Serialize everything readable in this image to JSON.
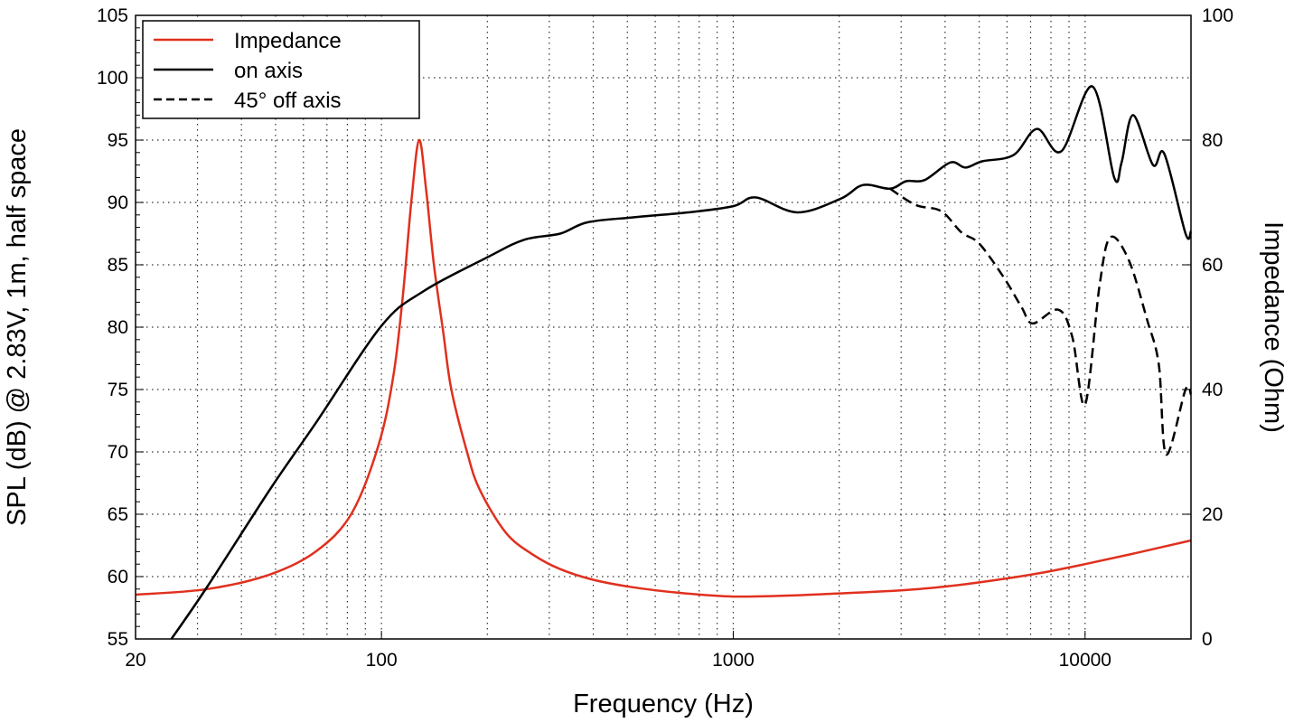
{
  "chart_data": {
    "type": "line",
    "xlabel": "Frequency (Hz)",
    "ylabel": "SPL (dB) @ 2.83V, 1m, half space",
    "y2label": "Impedance (Ohm)",
    "xscale": "log",
    "xlim": [
      20,
      20000
    ],
    "ylim": [
      55,
      105
    ],
    "y2lim": [
      0,
      100
    ],
    "xticks": [
      20,
      100,
      1000,
      10000
    ],
    "xtick_labels": [
      "20",
      "100",
      "1000",
      "10000"
    ],
    "yticks": [
      55,
      60,
      65,
      70,
      75,
      80,
      85,
      90,
      95,
      100,
      105
    ],
    "ytick_labels": [
      "55",
      "60",
      "65",
      "70",
      "75",
      "80",
      "85",
      "90",
      "95",
      "100",
      "105"
    ],
    "y2ticks": [
      0,
      20,
      40,
      60,
      80,
      100
    ],
    "y2tick_labels": [
      "0",
      "20",
      "40",
      "60",
      "80",
      "100"
    ],
    "grid": true,
    "legend_position": "top-left",
    "colors": {
      "impedance": "#e0301e",
      "on_axis": "#000000",
      "off_axis": "#000000"
    },
    "series": [
      {
        "name": "Impedance",
        "axis": "right",
        "style": "solid",
        "color": "#e0301e",
        "x": [
          20,
          32,
          48,
          65,
          82,
          98,
          108,
          115,
          122,
          128,
          134,
          141,
          150,
          158,
          175,
          190,
          226,
          270,
          322,
          400,
          516,
          700,
          1000,
          1500,
          2000,
          3000,
          4000,
          5500,
          7500,
          10000,
          14000,
          20000
        ],
        "y": [
          7.1,
          8,
          10.3,
          14,
          20,
          31,
          42,
          55,
          71,
          80,
          72,
          60,
          49,
          40,
          30,
          24,
          17,
          13.5,
          11.2,
          9.5,
          8.3,
          7.4,
          6.8,
          7,
          7.3,
          7.8,
          8.4,
          9.4,
          10.6,
          12,
          13.8,
          15.8
        ]
      },
      {
        "name": "on axis",
        "axis": "left",
        "style": "solid",
        "color": "#000000",
        "x": [
          25.3,
          32,
          48.5,
          65,
          100,
          132,
          200,
          254,
          322,
          384,
          516,
          744,
          1000,
          1160,
          1520,
          2020,
          2340,
          2790,
          3100,
          3500,
          4140,
          4570,
          5100,
          6260,
          7300,
          8560,
          10500,
          12100,
          12700,
          13700,
          15600,
          16800,
          19300,
          20000
        ],
        "y": [
          55,
          59.2,
          67.1,
          72.3,
          80.1,
          82.9,
          85.6,
          87,
          87.5,
          88.4,
          88.8,
          89.2,
          89.7,
          90.4,
          89.2,
          90.3,
          91.4,
          91.1,
          91.7,
          91.8,
          93.2,
          92.8,
          93.3,
          93.8,
          95.9,
          94.1,
          99.3,
          92,
          93.2,
          97,
          93,
          93.9,
          87.5,
          87.7
        ]
      },
      {
        "name": "45° off axis",
        "axis": "left",
        "style": "dashed",
        "color": "#000000",
        "x": [
          2790,
          3300,
          3900,
          4450,
          5000,
          5870,
          6600,
          7100,
          8400,
          9200,
          10000,
          11000,
          11800,
          13300,
          15000,
          16200,
          17000,
          19300,
          20000
        ],
        "y": [
          91.1,
          89.8,
          89.3,
          87.6,
          86.7,
          84,
          81.6,
          80.3,
          81.4,
          79.2,
          73.8,
          83.4,
          87.2,
          85.4,
          80.6,
          77,
          69.8,
          75,
          74.6
        ]
      }
    ]
  }
}
